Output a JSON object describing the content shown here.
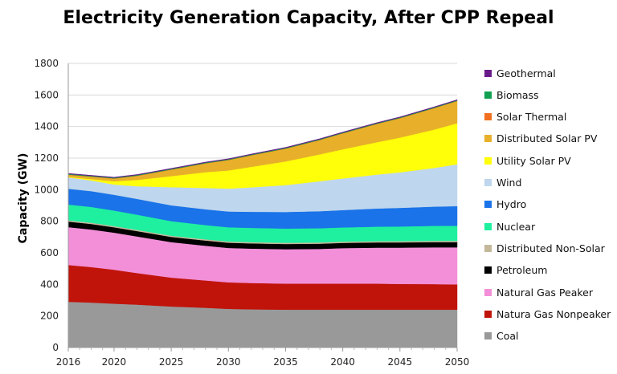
{
  "chart_data": {
    "type": "area",
    "stacked": true,
    "title": "Electricity Generation Capacity, After CPP Repeal",
    "ylabel": "Capacity (GW)",
    "xlabel": "",
    "ylim": [
      0,
      1800
    ],
    "xlim": [
      2016,
      2050
    ],
    "y_ticks": [
      "0",
      "200",
      "400",
      "600",
      "800",
      "1000",
      "1200",
      "1400",
      "1600",
      "1800"
    ],
    "x_ticks": [
      "2016",
      "2020",
      "2025",
      "2030",
      "2035",
      "2040",
      "2045",
      "2050"
    ],
    "grid": "horizontal",
    "legend": "right",
    "x": [
      2016,
      2018,
      2020,
      2022,
      2025,
      2028,
      2030,
      2032,
      2035,
      2038,
      2040,
      2043,
      2045,
      2048,
      2050
    ],
    "series": [
      {
        "name": "Coal",
        "color": "#999999",
        "values": [
          290,
          285,
          278,
          272,
          260,
          252,
          245,
          242,
          240,
          240,
          240,
          240,
          240,
          240,
          240
        ]
      },
      {
        "name": "Natura Gas Nonpeaker",
        "color": "#c0140a",
        "values": [
          233,
          225,
          215,
          200,
          183,
          173,
          168,
          167,
          165,
          165,
          165,
          165,
          163,
          162,
          160
        ]
      },
      {
        "name": "Natural Gas Peaker",
        "color": "#f28fd8",
        "values": [
          240,
          238,
          235,
          232,
          225,
          220,
          218,
          218,
          218,
          220,
          225,
          228,
          230,
          233,
          235
        ]
      },
      {
        "name": "Petroleum",
        "color": "#000000",
        "values": [
          35,
          35,
          34,
          34,
          33,
          33,
          33,
          33,
          33,
          33,
          33,
          33,
          33,
          33,
          33
        ]
      },
      {
        "name": "Distributed Non-Solar",
        "color": "#c4b89a",
        "values": [
          8,
          8,
          8,
          8,
          8,
          8,
          8,
          8,
          8,
          8,
          8,
          8,
          8,
          8,
          8
        ]
      },
      {
        "name": "Nuclear",
        "color": "#1ef0a0",
        "values": [
          100,
          100,
          98,
          96,
          92,
          90,
          90,
          90,
          90,
          90,
          90,
          92,
          93,
          95,
          95
        ]
      },
      {
        "name": "Hydro",
        "color": "#1a73e8",
        "values": [
          100,
          100,
          100,
          100,
          100,
          100,
          100,
          102,
          105,
          108,
          110,
          115,
          118,
          122,
          125
        ]
      },
      {
        "name": "Wind",
        "color": "#bed6ee",
        "values": [
          72,
          68,
          65,
          80,
          115,
          135,
          145,
          155,
          170,
          190,
          200,
          215,
          225,
          245,
          265
        ]
      },
      {
        "name": "Utility Solar PV",
        "color": "#ffff0a",
        "values": [
          3,
          8,
          20,
          40,
          70,
          100,
          115,
          130,
          150,
          170,
          185,
          205,
          220,
          243,
          260
        ]
      },
      {
        "name": "Distributed Solar PV",
        "color": "#e8b02a",
        "values": [
          13,
          15,
          17,
          25,
          40,
          55,
          65,
          72,
          80,
          90,
          100,
          115,
          122,
          135,
          140
        ]
      },
      {
        "name": "Solar Thermal",
        "color": "#f07020",
        "values": [
          2,
          2,
          2,
          2,
          2,
          2,
          2,
          2,
          2,
          2,
          2,
          2,
          2,
          2,
          2
        ]
      },
      {
        "name": "Biomass",
        "color": "#10a050",
        "values": [
          4,
          4,
          4,
          4,
          4,
          4,
          4,
          4,
          4,
          4,
          4,
          4,
          4,
          4,
          4
        ]
      },
      {
        "name": "Geothermal",
        "color": "#6a1b8a",
        "values": [
          3,
          3,
          3,
          3,
          3,
          3,
          3,
          3,
          3,
          3,
          3,
          3,
          3,
          3,
          3
        ]
      }
    ]
  }
}
